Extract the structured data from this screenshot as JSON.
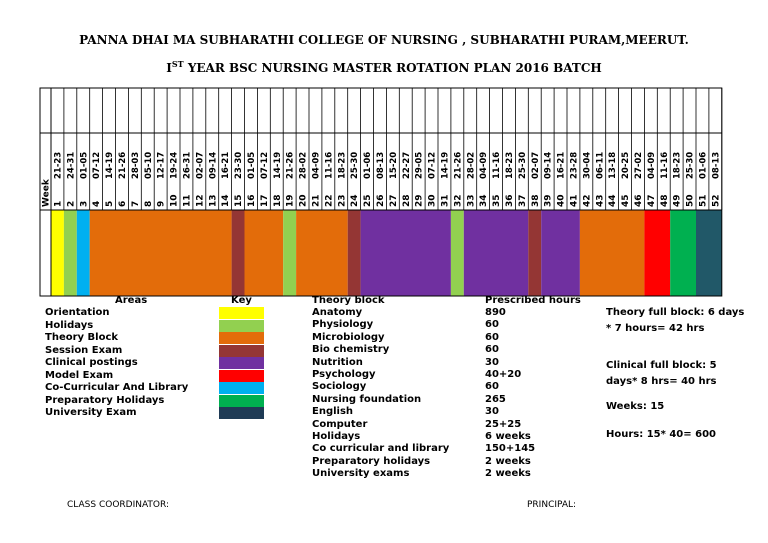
{
  "header": {
    "college": "PANNA DHAI MA SUBHARATHI COLLEGE OF   NURSING , SUBHARATHI PURAM,MEERUT.",
    "plan_prefix": "I",
    "plan_sup": "ST",
    "plan_rest": " YEAR BSC NURSING MASTER ROTATION PLAN 2016  BATCH"
  },
  "colors": {
    "Orientation": "#ffff00",
    "Holidays": "#92d050",
    "Theory Block": "#e36c0a",
    "Session Exam": "#943634",
    "Clinical postings": "#7030a0",
    "Model Exam": "#ff0000",
    "Co-Curricular And Library": "#00b0f0",
    "Preparatory Holidays": "#00b050",
    "University Exam": "#1f3b55",
    "Tail": "#215868"
  },
  "grid": {
    "week_label": "Week",
    "weeks": [
      "1",
      "2",
      "3",
      "4",
      "5",
      "6",
      "7",
      "8",
      "9",
      "10",
      "11",
      "12",
      "13",
      "14",
      "15",
      "16",
      "17",
      "18",
      "19",
      "20",
      "21",
      "22",
      "23",
      "24",
      "25",
      "26",
      "27",
      "28",
      "29",
      "30",
      "31",
      "32",
      "33",
      "34",
      "35",
      "36",
      "37",
      "38",
      "39",
      "40",
      "41",
      "42",
      "43",
      "44",
      "45",
      "46",
      "47",
      "48",
      "49",
      "50",
      "51",
      "52"
    ],
    "dates": [
      "21-23",
      "24-31",
      "01-05",
      "07-12",
      "14-19",
      "21-26",
      "28-03",
      "05-10",
      "12-17",
      "19-24",
      "26-31",
      "02-07",
      "09-14",
      "16-21",
      "23-30",
      "01-05",
      "07-12",
      "14-19",
      "21-26",
      "28-02",
      "04-09",
      "11-16",
      "18-23",
      "25-30",
      "01-06",
      "08-13",
      "15-20",
      "22-27",
      "29-05",
      "07-12",
      "14-19",
      "21-26",
      "28-02",
      "04-09",
      "11-16",
      "18-23",
      "25-30",
      "02-07",
      "09-14",
      "16-21",
      "23-28",
      "30-04",
      "06-11",
      "13-18",
      "20-25",
      "27-02",
      "04-09",
      "11-16",
      "18-23",
      "25-30",
      "01-06",
      "08-13"
    ]
  },
  "blocks": [
    {
      "area": "Orientation",
      "start": 0,
      "end": 1
    },
    {
      "area": "Holidays",
      "start": 1,
      "end": 2
    },
    {
      "area": "Co-Curricular And Library",
      "start": 2,
      "end": 3
    },
    {
      "area": "Theory Block",
      "start": 3,
      "end": 14
    },
    {
      "area": "Session Exam",
      "start": 14,
      "end": 15
    },
    {
      "area": "Theory Block",
      "start": 15,
      "end": 18
    },
    {
      "area": "Holidays",
      "start": 18,
      "end": 19
    },
    {
      "area": "Theory Block",
      "start": 19,
      "end": 23
    },
    {
      "area": "Session Exam",
      "start": 23,
      "end": 24
    },
    {
      "area": "Clinical postings",
      "start": 24,
      "end": 31
    },
    {
      "area": "Holidays",
      "start": 31,
      "end": 32
    },
    {
      "area": "Clinical postings",
      "start": 32,
      "end": 37
    },
    {
      "area": "Session Exam",
      "start": 37,
      "end": 38
    },
    {
      "area": "Clinical postings",
      "start": 38,
      "end": 41
    },
    {
      "area": "Theory Block",
      "start": 41,
      "end": 46
    },
    {
      "area": "Model Exam",
      "start": 46,
      "end": 48
    },
    {
      "area": "Preparatory Holidays",
      "start": 48,
      "end": 50
    },
    {
      "area": "Tail",
      "start": 50,
      "end": 52
    }
  ],
  "legend": {
    "areas_header": "Areas",
    "key_header": "Key",
    "areas": [
      "Orientation",
      "Holidays",
      "Theory Block",
      "Session Exam",
      "Clinical postings",
      "Model Exam",
      "Co-Curricular And Library",
      "Preparatory Holidays",
      "University Exam"
    ]
  },
  "theory": {
    "header": "Theory block",
    "hours_header": "Prescribed hours",
    "rows": [
      {
        "subject": "Anatomy",
        "hours": "890"
      },
      {
        "subject": "Physiology",
        "hours": "60"
      },
      {
        "subject": "Microbiology",
        "hours": "60"
      },
      {
        "subject": "Bio chemistry",
        "hours": "60"
      },
      {
        "subject": "Nutrition",
        "hours": "30"
      },
      {
        "subject": "Psychology",
        "hours": "40+20"
      },
      {
        "subject": "Sociology",
        "hours": "60"
      },
      {
        "subject": "Nursing foundation",
        "hours": "265"
      },
      {
        "subject": "English",
        "hours": "30"
      },
      {
        "subject": "Computer",
        "hours": "25+25"
      },
      {
        "subject": "Holidays",
        "hours": "6 weeks"
      },
      {
        "subject": "Co curricular and library",
        "hours": "150+145"
      },
      {
        "subject": "Preparatory holidays",
        "hours": "2 weeks"
      },
      {
        "subject": "University exams",
        "hours": "2 weeks"
      }
    ]
  },
  "notes": {
    "theory_full_block": "Theory full block: 6 days * 7 hours= 42 hrs",
    "clinical_full_block": "Clinical full block: 5 days* 8 hrs= 40 hrs",
    "weeks": "Weeks: 15",
    "hours": "Hours: 15* 40= 600"
  },
  "footer": {
    "coordinator": "CLASS COORDINATOR:",
    "principal": "PRINCIPAL:"
  }
}
